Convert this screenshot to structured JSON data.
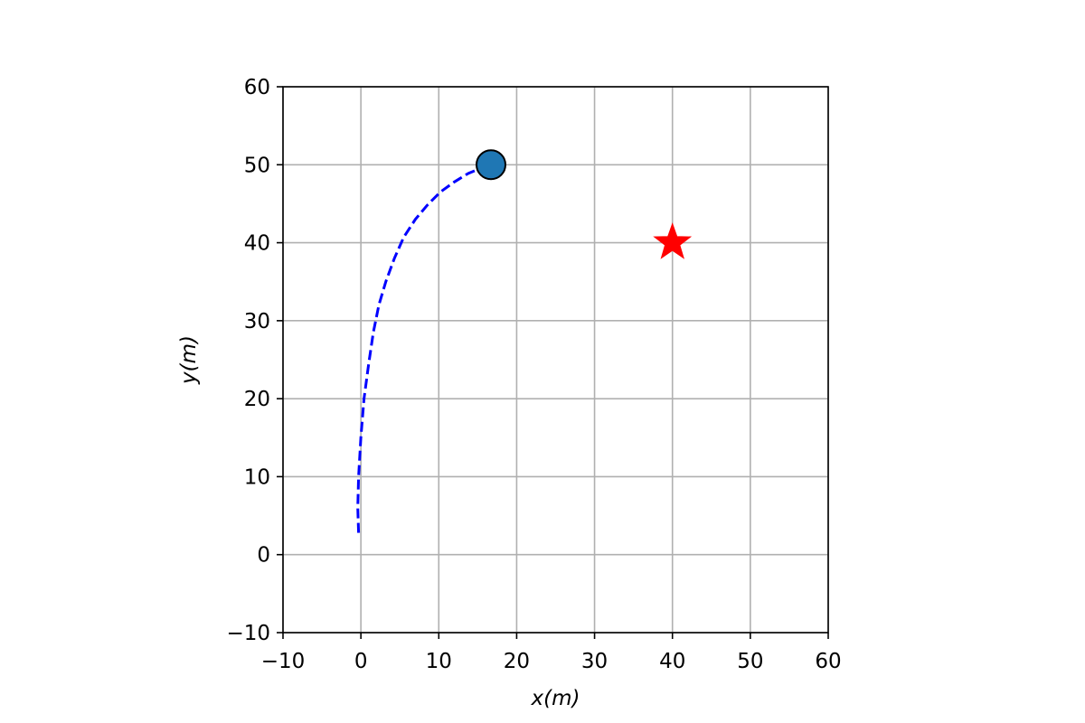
{
  "chart_data": {
    "type": "scatter",
    "title": "",
    "xlabel": "x(m)",
    "ylabel": "y(m)",
    "xlim": [
      -10,
      60
    ],
    "ylim": [
      -10,
      60
    ],
    "xticks": [
      -10,
      0,
      10,
      20,
      30,
      40,
      50,
      60
    ],
    "yticks": [
      -10,
      0,
      10,
      20,
      30,
      40,
      50,
      60
    ],
    "xtick_labels": [
      "−10",
      "0",
      "10",
      "20",
      "30",
      "40",
      "50",
      "60"
    ],
    "ytick_labels": [
      "−10",
      "0",
      "10",
      "20",
      "30",
      "40",
      "50",
      "60"
    ],
    "grid": true,
    "series": [
      {
        "kind": "line",
        "style": "dashed",
        "color": "#0000ff",
        "x": [
          -0.3,
          -0.4,
          -0.3,
          0.0,
          0.4,
          1.0,
          1.6,
          2.3,
          3.2,
          4.3,
          5.5,
          7.0,
          8.5,
          10.2,
          12.0,
          13.8,
          15.3,
          16.7
        ],
        "y": [
          2.8,
          6.0,
          10.0,
          15.0,
          20.0,
          24.5,
          28.5,
          32.0,
          35.0,
          38.0,
          40.7,
          43.0,
          44.8,
          46.5,
          47.8,
          48.9,
          49.5,
          50.0
        ]
      },
      {
        "kind": "marker",
        "marker": "circle",
        "color": "#1f77b4",
        "edge_color": "#000000",
        "x": [
          16.7
        ],
        "y": [
          50.0
        ]
      },
      {
        "kind": "marker",
        "marker": "star",
        "color": "#ff0000",
        "x": [
          40
        ],
        "y": [
          40
        ]
      }
    ]
  }
}
